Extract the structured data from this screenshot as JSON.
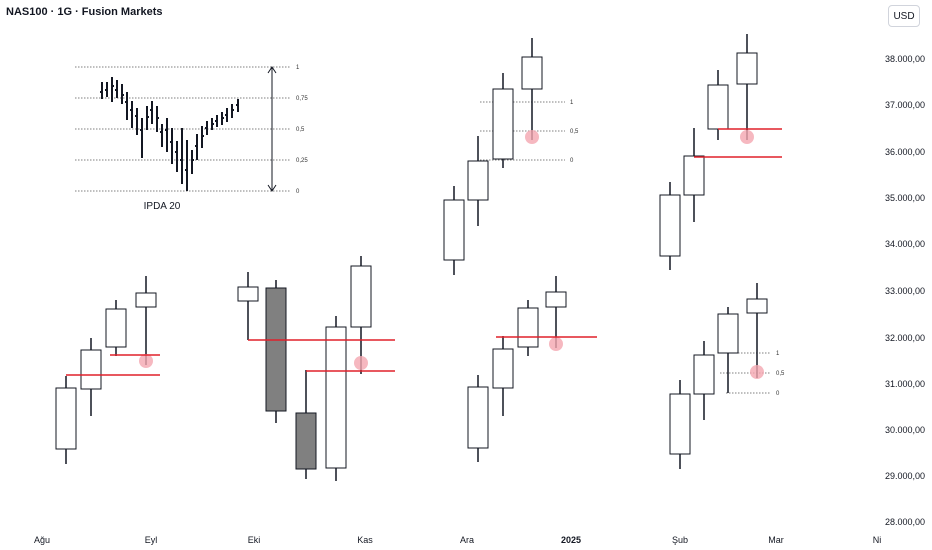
{
  "header": {
    "title": "NAS100 · 1G · Fusion Markets",
    "currency": "USD"
  },
  "price_axis": [
    "38.000,00",
    "37.000,00",
    "36.000,00",
    "35.000,00",
    "34.000,00",
    "33.000,00",
    "32.000,00",
    "31.000,00",
    "30.000,00",
    "29.000,00",
    "28.000,00"
  ],
  "time_axis": [
    "Ağu",
    "Eyl",
    "Eki",
    "Kas",
    "Ara",
    "2025",
    "Şub",
    "Mar",
    "Ni"
  ],
  "ipda": {
    "label": "IPDA 20",
    "levels": [
      "1",
      "0,75",
      "0,5",
      "0,25",
      "0"
    ]
  },
  "fib_small": [
    "1",
    "0,5",
    "0"
  ],
  "fib_small_alt": [
    "1",
    "0,5",
    "0"
  ],
  "colors": {
    "accent_line": "#e0202a",
    "marker": "#f4a6b0",
    "bear_fill": "#808080",
    "bull_fill": "#ffffff"
  }
}
